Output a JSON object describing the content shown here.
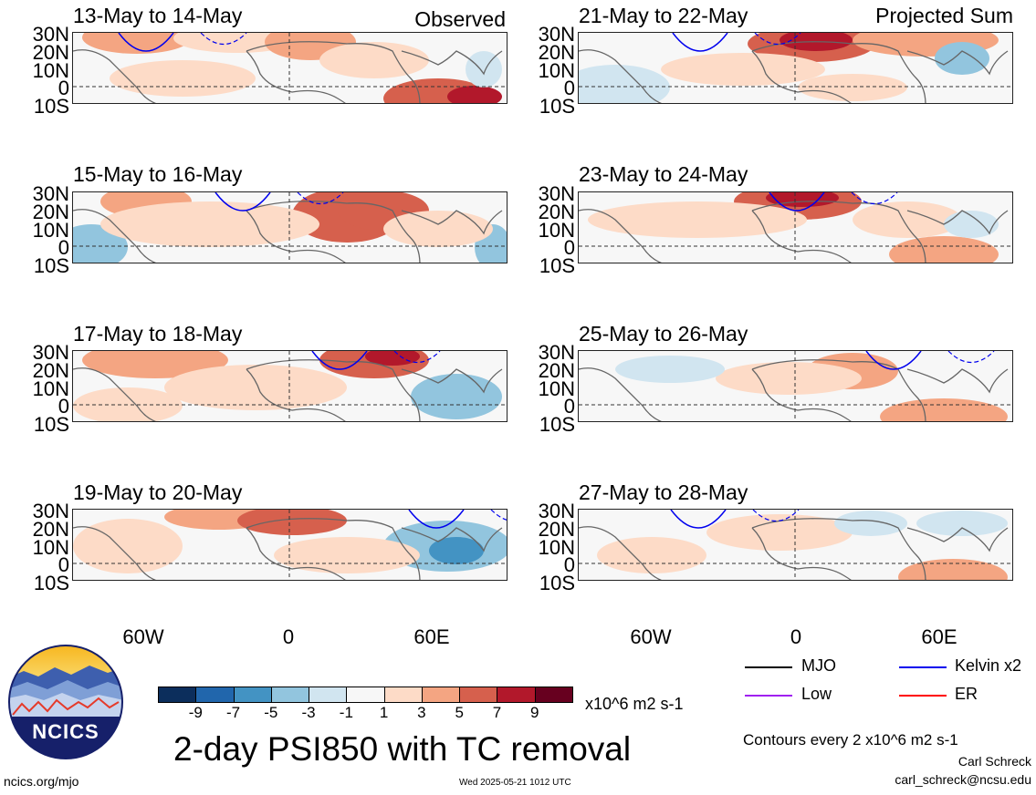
{
  "panels": [
    {
      "title": "13-May to 14-May",
      "tag": "Observed"
    },
    {
      "title": "21-May to 22-May",
      "tag": "Projected Sum"
    },
    {
      "title": "15-May to 16-May",
      "tag": ""
    },
    {
      "title": "23-May to 24-May",
      "tag": ""
    },
    {
      "title": "17-May to 18-May",
      "tag": ""
    },
    {
      "title": "25-May to 26-May",
      "tag": ""
    },
    {
      "title": "19-May to 20-May",
      "tag": ""
    },
    {
      "title": "27-May to 28-May",
      "tag": ""
    }
  ],
  "lat_labels": [
    "30N",
    "20N",
    "10N",
    "0",
    "10S"
  ],
  "lon_labels": [
    "60W",
    "0",
    "60E"
  ],
  "colorbar": {
    "colors": [
      "#0c2e5c",
      "#2166ac",
      "#4393c3",
      "#92c5de",
      "#d1e5f0",
      "#f7f7f7",
      "#fddbc7",
      "#f4a582",
      "#d6604d",
      "#b2182b",
      "#67001f"
    ],
    "labels": [
      "-9",
      "-7",
      "-5",
      "-3",
      "-1",
      "1",
      "3",
      "5",
      "7",
      "9"
    ],
    "units": "x10^6 m2 s-1"
  },
  "legend": [
    {
      "label": "MJO",
      "color": "#000000"
    },
    {
      "label": "Kelvin x2",
      "color": "#0000ee"
    },
    {
      "label": "Low",
      "color": "#a020f0"
    },
    {
      "label": "ER",
      "color": "#ff0000"
    }
  ],
  "main_title": "2-day PSI850 with TC removal",
  "contour_note": "Contours every 2 x10^6 m2 s-1",
  "author": "Carl Schreck",
  "email": "carl_schreck@ncsu.edu",
  "site": "ncics.org/mjo",
  "timestamp": "Wed 2025-05-21 1012 UTC",
  "logo_text": "NCICS"
}
